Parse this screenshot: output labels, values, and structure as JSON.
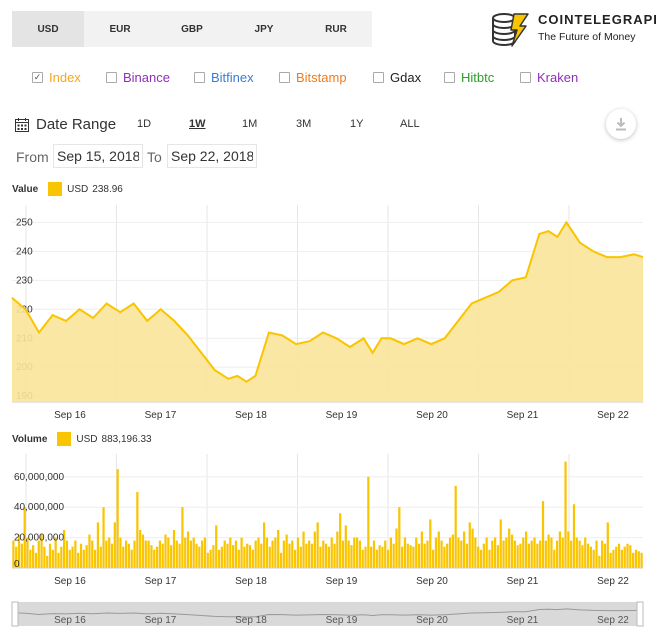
{
  "currency_tabs": [
    {
      "label": "USD",
      "active": true
    },
    {
      "label": "EUR"
    },
    {
      "label": "GBP"
    },
    {
      "label": "JPY"
    },
    {
      "label": "RUR"
    }
  ],
  "brand": {
    "name": "COINTELEGRAPH",
    "tagline": "The Future of Money",
    "icon": "coin-stack-lightning-logo"
  },
  "sources": [
    {
      "label": "Index",
      "checked": true,
      "color": "#f5a623"
    },
    {
      "label": "Binance",
      "checked": false,
      "color": "#8e2fb7"
    },
    {
      "label": "Bitfinex",
      "checked": false,
      "color": "#3a7bd5"
    },
    {
      "label": "Bitstamp",
      "checked": false,
      "color": "#f07b1a"
    },
    {
      "label": "Gdax",
      "checked": false,
      "color": "#222222"
    },
    {
      "label": "Hitbtc",
      "checked": false,
      "color": "#2aa02a"
    },
    {
      "label": "Kraken",
      "checked": false,
      "color": "#8e2fb7"
    }
  ],
  "date_range": {
    "label": "Date Range",
    "options": [
      "1D",
      "1W",
      "1M",
      "3M",
      "1Y",
      "ALL"
    ],
    "active": "1W",
    "icon": "calendar-icon"
  },
  "download_icon": "download-icon",
  "period": {
    "from_label": "From",
    "from": "Sep 15, 2018",
    "to_label": "To",
    "to": "Sep 22, 2018"
  },
  "colors": {
    "series": "#f9c400",
    "fill": "#fbe49a"
  },
  "value_legend": {
    "title": "Value",
    "series": "USD",
    "value": "238.96"
  },
  "volume_legend": {
    "title": "Volume",
    "series": "USD",
    "value": "883,196.33"
  },
  "chart_data": [
    {
      "type": "area",
      "title": "Value",
      "series": [
        {
          "name": "USD",
          "x": [
            0,
            0.15,
            0.3,
            0.45,
            0.6,
            0.75,
            0.9,
            1.05,
            1.2,
            1.35,
            1.5,
            1.65,
            1.8,
            1.95,
            2.1,
            2.25,
            2.4,
            2.5,
            2.6,
            2.7,
            2.85,
            3.0,
            3.15,
            3.3,
            3.45,
            3.6,
            3.75,
            3.9,
            4.0,
            4.1,
            4.2,
            4.35,
            4.5,
            4.65,
            4.8,
            4.95,
            5.1,
            5.25,
            5.4,
            5.55,
            5.7,
            5.85,
            5.95,
            6.05,
            6.15,
            6.3,
            6.45,
            6.6,
            6.75,
            6.9,
            7.0
          ],
          "values": [
            224,
            220,
            212,
            218,
            216,
            220,
            217,
            222,
            219,
            222,
            216,
            220,
            216,
            211,
            205,
            199,
            196,
            197,
            195,
            197,
            212,
            211,
            208,
            209,
            212,
            210,
            207,
            210,
            205,
            210,
            210,
            208,
            210,
            208,
            210,
            216,
            222,
            224,
            226,
            230,
            231,
            246,
            247,
            245,
            250,
            243,
            240,
            238,
            238,
            239,
            238
          ]
        }
      ],
      "x_ticks": [
        "Sep 16",
        "Sep 17",
        "Sep 18",
        "Sep 19",
        "Sep 20",
        "Sep 21",
        "Sep 22"
      ],
      "ylim": [
        188,
        256
      ],
      "y_ticks": [
        190,
        200,
        210,
        220,
        230,
        240,
        250
      ],
      "grid": true
    },
    {
      "type": "bar",
      "title": "Volume",
      "series": [
        {
          "name": "USD",
          "values": [
            18,
            14,
            22,
            16,
            40,
            20,
            12,
            15,
            10,
            18,
            22,
            14,
            8,
            16,
            12,
            20,
            10,
            14,
            25,
            18,
            12,
            14,
            18,
            10,
            16,
            12,
            15,
            22,
            18,
            12,
            30,
            14,
            40,
            18,
            20,
            16,
            30,
            65,
            20,
            14,
            18,
            16,
            12,
            18,
            50,
            25,
            22,
            18,
            18,
            15,
            12,
            14,
            18,
            16,
            22,
            20,
            15,
            25,
            18,
            16,
            40,
            20,
            24,
            18,
            20,
            16,
            14,
            18,
            20,
            10,
            12,
            15,
            28,
            12,
            14,
            18,
            16,
            20,
            15,
            18,
            12,
            20,
            14,
            16,
            15,
            12,
            18,
            20,
            16,
            30,
            20,
            14,
            18,
            20,
            25,
            10,
            18,
            22,
            16,
            18,
            12,
            20,
            14,
            24,
            16,
            18,
            16,
            24,
            30,
            14,
            18,
            16,
            14,
            20,
            16,
            24,
            36,
            18,
            28,
            18,
            15,
            20,
            20,
            18,
            12,
            14,
            60,
            14,
            18,
            12,
            15,
            14,
            18,
            12,
            20,
            16,
            26,
            40,
            14,
            20,
            16,
            15,
            14,
            20,
            16,
            24,
            16,
            18,
            32,
            12,
            20,
            24,
            18,
            14,
            16,
            20,
            22,
            54,
            20,
            18,
            24,
            16,
            30,
            26,
            20,
            14,
            12,
            16,
            20,
            12,
            18,
            20,
            15,
            32,
            18,
            20,
            26,
            22,
            18,
            15,
            16,
            20,
            24,
            16,
            18,
            20,
            16,
            18,
            44,
            18,
            22,
            20,
            12,
            18,
            24,
            20,
            70,
            24,
            18,
            42,
            20,
            18,
            15,
            20,
            16,
            14,
            12,
            18,
            8,
            18,
            16,
            30,
            10,
            12,
            14,
            16,
            12,
            14,
            16,
            15,
            10,
            12,
            11,
            10
          ]
        }
      ],
      "x_ticks": [
        "Sep 16",
        "Sep 17",
        "Sep 18",
        "Sep 19",
        "Sep 20",
        "Sep 21",
        "Sep 22"
      ],
      "ylim": [
        0,
        75
      ],
      "y_ticks": [
        {
          "value": 0,
          "label": "0"
        },
        {
          "value": 20,
          "label": "20,000,000"
        },
        {
          "value": 40,
          "label": "40,000,000"
        },
        {
          "value": 60,
          "label": "60,000,000"
        }
      ],
      "grid": true
    }
  ],
  "navigator": {
    "ticks": [
      "Sep 16",
      "Sep 17",
      "Sep 18",
      "Sep 19",
      "Sep 20",
      "Sep 21",
      "Sep 22"
    ]
  }
}
